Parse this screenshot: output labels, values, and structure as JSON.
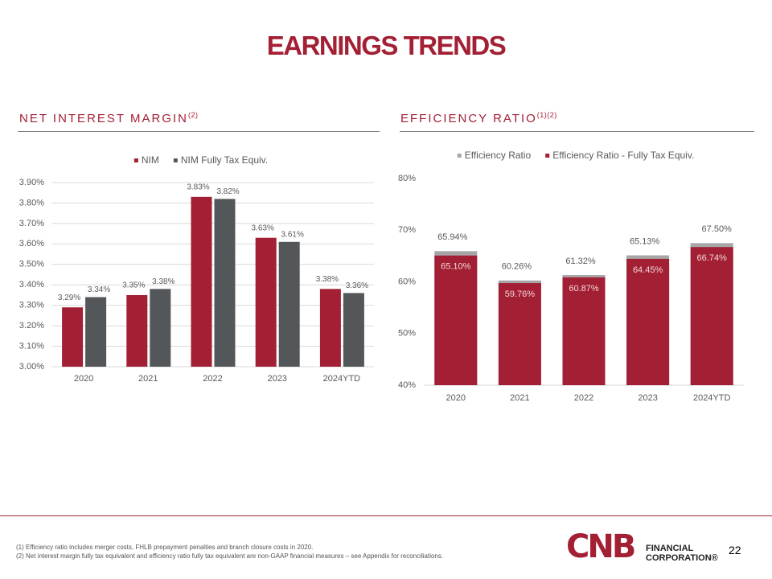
{
  "page": {
    "title": "EARNINGS TRENDS",
    "footnotes": [
      "(1) Efficiency ratio includes merger costs, FHLB prepayment penalties and branch closure costs in 2020.",
      "(2) Net interest margin fully tax equivalent and efficiency ratio fully tax equivalent are non-GAAP financial measures – see Appendix for reconciliations."
    ],
    "logo": "CNB",
    "logo_line1": "FINANCIAL",
    "logo_line2": "CORPORATION®",
    "page_number": "22"
  },
  "chart_data": [
    {
      "type": "bar",
      "bar_mode": "grouped",
      "title": "NET INTEREST MARGIN",
      "title_note": "(2)",
      "categories": [
        "2020",
        "2021",
        "2022",
        "2023",
        "2024YTD"
      ],
      "series": [
        {
          "name": "NIM",
          "color": "#a31f34",
          "values": [
            3.29,
            3.35,
            3.83,
            3.63,
            3.38
          ],
          "value_labels": [
            "3.29%",
            "3.35%",
            "3.83%",
            "3.63%",
            "3.38%"
          ]
        },
        {
          "name": "NIM Fully Tax Equiv.",
          "color": "#54575a",
          "values": [
            3.34,
            3.38,
            3.82,
            3.61,
            3.36
          ],
          "value_labels": [
            "3.34%",
            "3.38%",
            "3.82%",
            "3.61%",
            "3.36%"
          ]
        }
      ],
      "ylim": [
        3.0,
        3.9
      ],
      "yticks": [
        {
          "value": 3.0,
          "label": "3.00%"
        },
        {
          "value": 3.1,
          "label": "3.10%"
        },
        {
          "value": 3.2,
          "label": "3.20%"
        },
        {
          "value": 3.3,
          "label": "3.30%"
        },
        {
          "value": 3.4,
          "label": "3.40%"
        },
        {
          "value": 3.5,
          "label": "3.50%"
        },
        {
          "value": 3.6,
          "label": "3.60%"
        },
        {
          "value": 3.7,
          "label": "3.70%"
        },
        {
          "value": 3.8,
          "label": "3.80%"
        },
        {
          "value": 3.9,
          "label": "3.90%"
        }
      ],
      "grid": true,
      "legend": "top"
    },
    {
      "type": "bar",
      "bar_mode": "overlap",
      "title": "EFFICIENCY RATIO",
      "title_note": "(1)(2)",
      "categories": [
        "2020",
        "2021",
        "2022",
        "2023",
        "2024YTD"
      ],
      "series": [
        {
          "name": "Efficiency Ratio",
          "color": "#a6a6a6",
          "values": [
            65.94,
            60.26,
            61.32,
            65.13,
            67.5
          ],
          "value_labels": [
            "65.94%",
            "60.26%",
            "61.32%",
            "65.13%",
            "67.50%"
          ]
        },
        {
          "name": "Efficiency Ratio - Fully Tax Equiv.",
          "color": "#a31f34",
          "values": [
            65.1,
            59.76,
            60.87,
            64.45,
            66.74
          ],
          "value_labels": [
            "65.10%",
            "59.76%",
            "60.87%",
            "64.45%",
            "66.74%"
          ]
        }
      ],
      "ylim": [
        40,
        80
      ],
      "yticks": [
        {
          "value": 40,
          "label": "40%"
        },
        {
          "value": 50,
          "label": "50%"
        },
        {
          "value": 60,
          "label": "60%"
        },
        {
          "value": 70,
          "label": "70%"
        },
        {
          "value": 80,
          "label": "80%"
        }
      ],
      "grid": false,
      "legend": "top"
    }
  ]
}
